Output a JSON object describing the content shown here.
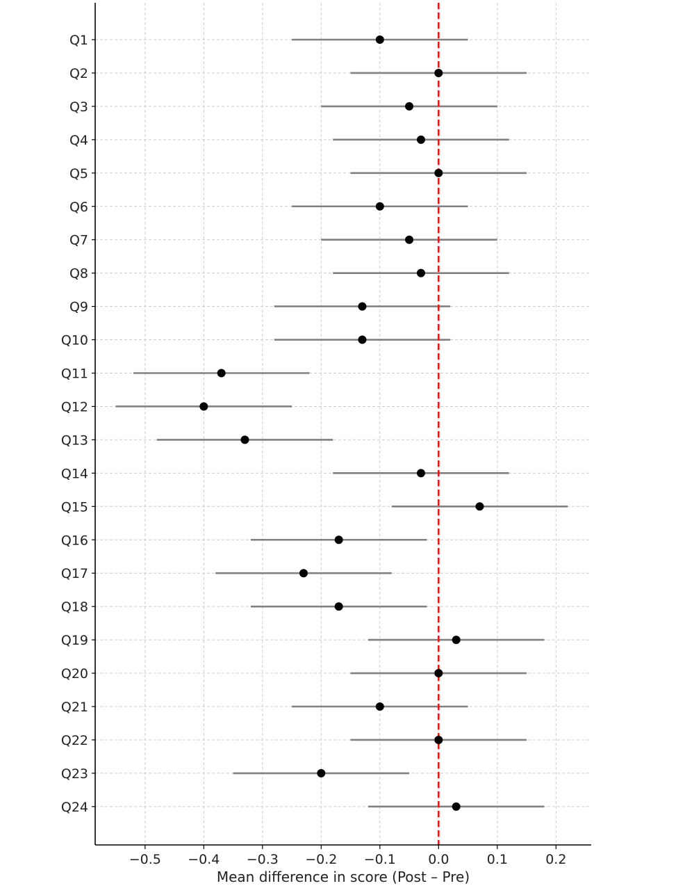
{
  "chart_data": {
    "type": "scatter",
    "subtype": "forest-plot",
    "title": "",
    "xlabel": "Mean difference in score (Post – Pre)",
    "ylabel": "",
    "xlim": [
      -0.585,
      0.26
    ],
    "xticks": [
      -0.5,
      -0.4,
      -0.3,
      -0.2,
      -0.1,
      0.0,
      0.1,
      0.2
    ],
    "xtick_labels": [
      "−0.5",
      "−0.4",
      "−0.3",
      "−0.2",
      "−0.1",
      "0.0",
      "0.1",
      "0.2"
    ],
    "grid": true,
    "reference_line": {
      "x": 0.0,
      "style": "dashed",
      "color": "#e31a1c"
    },
    "colors": {
      "point": "#000000",
      "interval": "#808080",
      "grid": "#cccccc",
      "axis": "#000000"
    },
    "categories": [
      "Q1",
      "Q2",
      "Q3",
      "Q4",
      "Q5",
      "Q6",
      "Q7",
      "Q8",
      "Q9",
      "Q10",
      "Q11",
      "Q12",
      "Q13",
      "Q14",
      "Q15",
      "Q16",
      "Q17",
      "Q18",
      "Q19",
      "Q20",
      "Q21",
      "Q22",
      "Q23",
      "Q24"
    ],
    "mean": [
      -0.1,
      0.0,
      -0.05,
      -0.03,
      0.0,
      -0.1,
      -0.05,
      -0.03,
      -0.13,
      -0.13,
      -0.37,
      -0.4,
      -0.33,
      -0.03,
      0.07,
      -0.17,
      -0.23,
      -0.17,
      0.03,
      0.0,
      -0.1,
      0.0,
      -0.2,
      0.03
    ],
    "ci_low": [
      -0.25,
      -0.15,
      -0.2,
      -0.18,
      -0.15,
      -0.25,
      -0.2,
      -0.18,
      -0.28,
      -0.28,
      -0.52,
      -0.55,
      -0.48,
      -0.18,
      -0.08,
      -0.32,
      -0.38,
      -0.32,
      -0.12,
      -0.15,
      -0.25,
      -0.15,
      -0.35,
      -0.12
    ],
    "ci_high": [
      0.05,
      0.15,
      0.1,
      0.12,
      0.15,
      0.05,
      0.1,
      0.12,
      0.02,
      0.02,
      -0.22,
      -0.25,
      -0.18,
      0.12,
      0.22,
      -0.02,
      -0.08,
      -0.02,
      0.18,
      0.15,
      0.05,
      0.15,
      -0.05,
      0.18
    ]
  }
}
